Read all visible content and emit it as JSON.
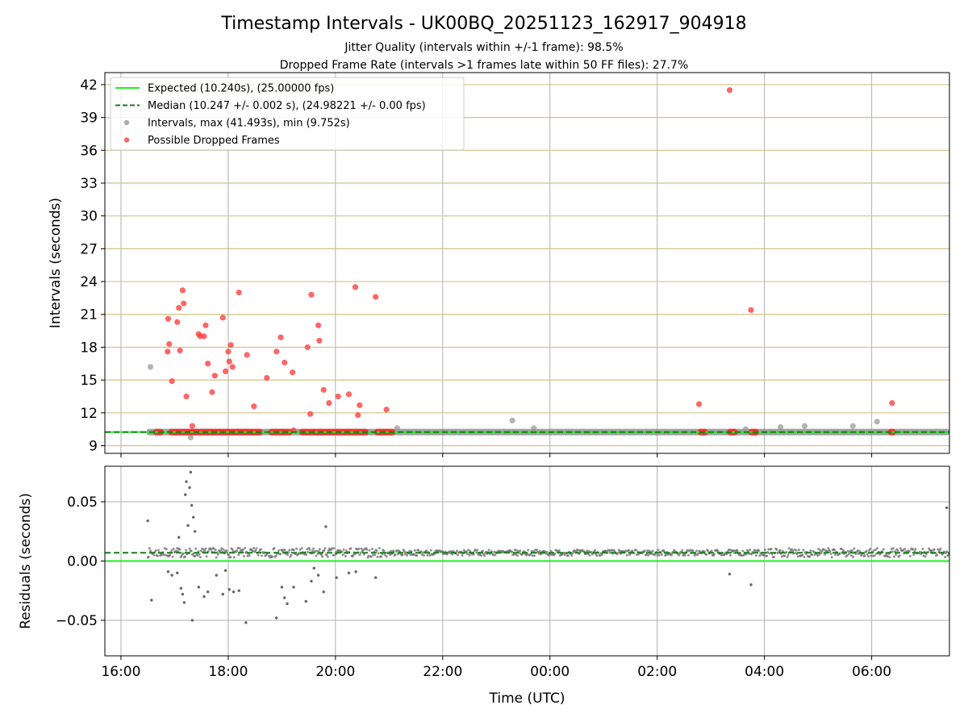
{
  "chart_data": {
    "type": "scatter",
    "title": "Timestamp Intervals - UK00BQ_20251123_162917_904918",
    "subtitle_lines": [
      "Jitter Quality (intervals within +/-1 frame): 98.5%",
      "Dropped Frame Rate (intervals >1 frames late within 50 FF files): 27.7%"
    ],
    "xlabel": "Time (UTC)",
    "x_tick_labels": [
      "16:00",
      "18:00",
      "20:00",
      "22:00",
      "00:00",
      "02:00",
      "04:00",
      "06:00"
    ],
    "x_tick_hours": [
      16,
      18,
      20,
      22,
      24,
      26,
      28,
      30
    ],
    "x_range_hours": [
      15.7,
      31.45
    ],
    "top_panel": {
      "ylabel": "Intervals (seconds)",
      "ylim": [
        8.3,
        43.1
      ],
      "y_ticks": [
        9,
        12,
        15,
        18,
        21,
        24,
        27,
        30,
        33,
        36,
        39,
        42
      ],
      "grid": true,
      "legend_position": "top-left",
      "legend": [
        {
          "label": "Expected (10.240s), (25.00000 fps)",
          "style": "solid-line",
          "color": "#22ee22"
        },
        {
          "label": "Median (10.247 +/- 0.002 s), (24.98221 +/- 0.00 fps)",
          "style": "dashed-line",
          "color": "#138013"
        },
        {
          "label": "Intervals, max (41.493s), min (9.752s)",
          "style": "marker",
          "color": "#999999"
        },
        {
          "label": "Possible Dropped Frames",
          "style": "marker",
          "color": "#ff4040"
        }
      ],
      "expected_value": 10.24,
      "median_value": 10.247,
      "baseline_band_hours": [
        16.48,
        31.45
      ],
      "dropped_segments_hours": [
        [
          16.6,
          16.8
        ],
        [
          16.88,
          18.65
        ],
        [
          18.75,
          19.2
        ],
        [
          19.32,
          20.62
        ],
        [
          20.72,
          21.12
        ],
        [
          26.75,
          26.95
        ],
        [
          27.3,
          27.5
        ],
        [
          27.7,
          27.9
        ],
        [
          30.3,
          30.45
        ]
      ],
      "intervals_outliers": [
        {
          "x": 16.55,
          "y": 16.2
        },
        {
          "x": 17.3,
          "y": 9.75
        },
        {
          "x": 21.15,
          "y": 10.6
        },
        {
          "x": 23.3,
          "y": 11.3
        },
        {
          "x": 23.7,
          "y": 10.6
        },
        {
          "x": 27.65,
          "y": 10.5
        },
        {
          "x": 28.3,
          "y": 10.7
        },
        {
          "x": 28.75,
          "y": 10.8
        },
        {
          "x": 29.65,
          "y": 10.8
        },
        {
          "x": 30.1,
          "y": 11.2
        }
      ],
      "dropped_frames": [
        {
          "x": 16.87,
          "y": 17.6
        },
        {
          "x": 16.88,
          "y": 20.6
        },
        {
          "x": 16.9,
          "y": 18.3
        },
        {
          "x": 16.95,
          "y": 14.9
        },
        {
          "x": 17.05,
          "y": 20.3
        },
        {
          "x": 17.08,
          "y": 21.6
        },
        {
          "x": 17.1,
          "y": 17.7
        },
        {
          "x": 17.15,
          "y": 23.2
        },
        {
          "x": 17.17,
          "y": 22.0
        },
        {
          "x": 17.22,
          "y": 13.5
        },
        {
          "x": 17.33,
          "y": 10.8
        },
        {
          "x": 17.45,
          "y": 19.2
        },
        {
          "x": 17.48,
          "y": 19.0
        },
        {
          "x": 17.55,
          "y": 19.0
        },
        {
          "x": 17.58,
          "y": 20.0
        },
        {
          "x": 17.62,
          "y": 16.5
        },
        {
          "x": 17.7,
          "y": 13.9
        },
        {
          "x": 17.75,
          "y": 15.4
        },
        {
          "x": 17.9,
          "y": 20.7
        },
        {
          "x": 17.95,
          "y": 15.8
        },
        {
          "x": 18.0,
          "y": 17.6
        },
        {
          "x": 18.02,
          "y": 16.7
        },
        {
          "x": 18.05,
          "y": 18.2
        },
        {
          "x": 18.08,
          "y": 16.2
        },
        {
          "x": 18.2,
          "y": 23.0
        },
        {
          "x": 18.35,
          "y": 17.3
        },
        {
          "x": 18.48,
          "y": 12.6
        },
        {
          "x": 18.72,
          "y": 15.2
        },
        {
          "x": 18.9,
          "y": 17.6
        },
        {
          "x": 18.98,
          "y": 18.9
        },
        {
          "x": 19.05,
          "y": 16.6
        },
        {
          "x": 19.2,
          "y": 15.7
        },
        {
          "x": 19.22,
          "y": 10.4
        },
        {
          "x": 19.48,
          "y": 18.0
        },
        {
          "x": 19.53,
          "y": 11.9
        },
        {
          "x": 19.55,
          "y": 22.8
        },
        {
          "x": 19.68,
          "y": 20.0
        },
        {
          "x": 19.7,
          "y": 18.6
        },
        {
          "x": 19.78,
          "y": 14.1
        },
        {
          "x": 19.88,
          "y": 12.9
        },
        {
          "x": 20.05,
          "y": 13.5
        },
        {
          "x": 20.25,
          "y": 13.7
        },
        {
          "x": 20.37,
          "y": 23.5
        },
        {
          "x": 20.42,
          "y": 11.8
        },
        {
          "x": 20.45,
          "y": 12.7
        },
        {
          "x": 20.75,
          "y": 22.6
        },
        {
          "x": 20.95,
          "y": 12.3
        },
        {
          "x": 26.78,
          "y": 12.8
        },
        {
          "x": 27.35,
          "y": 41.5
        },
        {
          "x": 27.75,
          "y": 21.4
        },
        {
          "x": 30.38,
          "y": 12.9
        }
      ]
    },
    "bottom_panel": {
      "ylabel": "Residuals (seconds)",
      "ylim": [
        -0.08,
        0.08
      ],
      "y_ticks": [
        -0.05,
        0.0,
        0.05
      ],
      "y_tick_labels": [
        "−0.05",
        "0.00",
        "0.05"
      ],
      "grid": true,
      "expected_value": 0.0,
      "median_value": 0.007,
      "band_hours": [
        16.5,
        31.45
      ],
      "band_center": 0.007,
      "band_halfwidth": 0.0025,
      "scatter_outliers": [
        {
          "x": 16.5,
          "y": 0.034
        },
        {
          "x": 16.57,
          "y": -0.033
        },
        {
          "x": 16.88,
          "y": -0.009
        },
        {
          "x": 16.95,
          "y": -0.012
        },
        {
          "x": 17.05,
          "y": -0.01
        },
        {
          "x": 17.08,
          "y": 0.02
        },
        {
          "x": 17.12,
          "y": -0.023
        },
        {
          "x": 17.15,
          "y": -0.028
        },
        {
          "x": 17.18,
          "y": -0.035
        },
        {
          "x": 17.2,
          "y": 0.056
        },
        {
          "x": 17.22,
          "y": 0.067
        },
        {
          "x": 17.25,
          "y": 0.03
        },
        {
          "x": 17.28,
          "y": 0.062
        },
        {
          "x": 17.3,
          "y": 0.075
        },
        {
          "x": 17.32,
          "y": 0.047
        },
        {
          "x": 17.33,
          "y": -0.05
        },
        {
          "x": 17.35,
          "y": 0.037
        },
        {
          "x": 17.38,
          "y": 0.025
        },
        {
          "x": 17.45,
          "y": -0.022
        },
        {
          "x": 17.55,
          "y": -0.03
        },
        {
          "x": 17.62,
          "y": -0.026
        },
        {
          "x": 17.78,
          "y": -0.012
        },
        {
          "x": 17.9,
          "y": -0.028
        },
        {
          "x": 17.95,
          "y": -0.008
        },
        {
          "x": 18.02,
          "y": -0.024
        },
        {
          "x": 18.1,
          "y": -0.026
        },
        {
          "x": 18.2,
          "y": -0.025
        },
        {
          "x": 18.33,
          "y": -0.052
        },
        {
          "x": 18.9,
          "y": -0.048
        },
        {
          "x": 19.0,
          "y": -0.022
        },
        {
          "x": 19.05,
          "y": -0.031
        },
        {
          "x": 19.1,
          "y": -0.036
        },
        {
          "x": 19.22,
          "y": -0.022
        },
        {
          "x": 19.45,
          "y": -0.034
        },
        {
          "x": 19.55,
          "y": -0.017
        },
        {
          "x": 19.6,
          "y": -0.006
        },
        {
          "x": 19.68,
          "y": -0.012
        },
        {
          "x": 19.78,
          "y": -0.026
        },
        {
          "x": 19.82,
          "y": 0.029
        },
        {
          "x": 20.02,
          "y": -0.014
        },
        {
          "x": 20.25,
          "y": -0.01
        },
        {
          "x": 20.38,
          "y": -0.009
        },
        {
          "x": 20.75,
          "y": -0.014
        },
        {
          "x": 27.35,
          "y": -0.011
        },
        {
          "x": 27.75,
          "y": -0.02
        },
        {
          "x": 31.4,
          "y": 0.045
        }
      ]
    }
  }
}
